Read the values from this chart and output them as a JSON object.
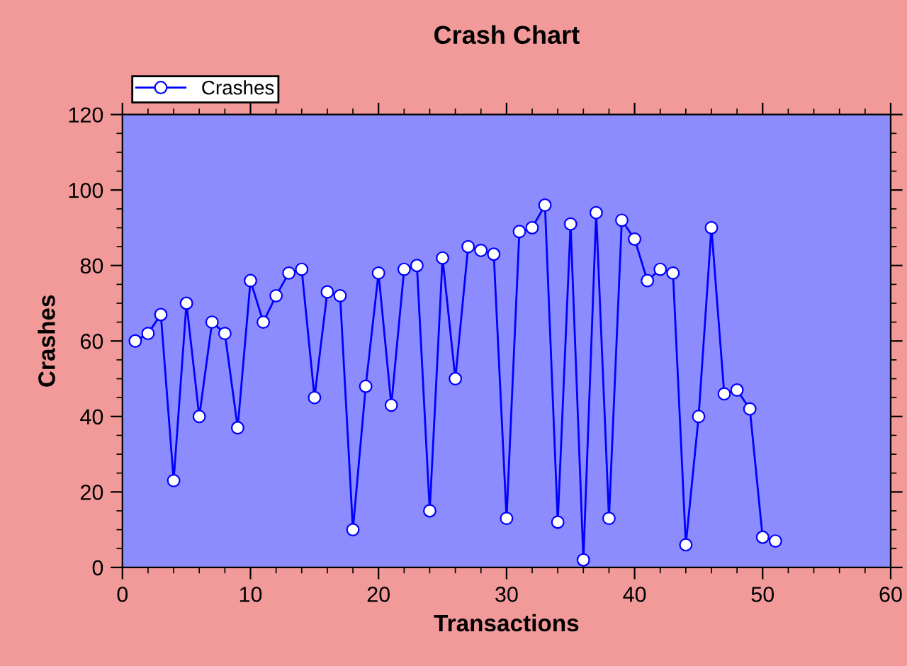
{
  "chart_data": {
    "type": "line",
    "title": "Crash Chart",
    "xlabel": "Transactions",
    "ylabel": "Crashes",
    "x": [
      1,
      2,
      3,
      4,
      5,
      6,
      7,
      8,
      9,
      10,
      11,
      12,
      13,
      14,
      15,
      16,
      17,
      18,
      19,
      20,
      21,
      22,
      23,
      24,
      25,
      26,
      27,
      28,
      29,
      30,
      31,
      32,
      33,
      34,
      35,
      36,
      37,
      38,
      39,
      40,
      41,
      42,
      43,
      44,
      45,
      46,
      47,
      48,
      49,
      50,
      51
    ],
    "series": [
      {
        "name": "Crashes",
        "color": "#0000ff",
        "values": [
          60,
          62,
          67,
          23,
          70,
          40,
          65,
          62,
          37,
          76,
          65,
          72,
          78,
          79,
          45,
          73,
          72,
          10,
          48,
          78,
          43,
          79,
          80,
          15,
          82,
          50,
          85,
          84,
          83,
          13,
          89,
          90,
          96,
          12,
          91,
          2,
          94,
          13,
          92,
          87,
          76,
          79,
          78,
          6,
          40,
          90,
          46,
          47,
          42,
          8,
          7
        ]
      }
    ],
    "xlim": [
      0,
      60
    ],
    "xticks": [
      0,
      10,
      20,
      30,
      40,
      50,
      60
    ],
    "ylim": [
      0,
      120
    ],
    "yticks": [
      0,
      20,
      40,
      60,
      80,
      100,
      120
    ],
    "grid": false,
    "legend": "top left",
    "marker": "circle",
    "line_style": "solid"
  }
}
